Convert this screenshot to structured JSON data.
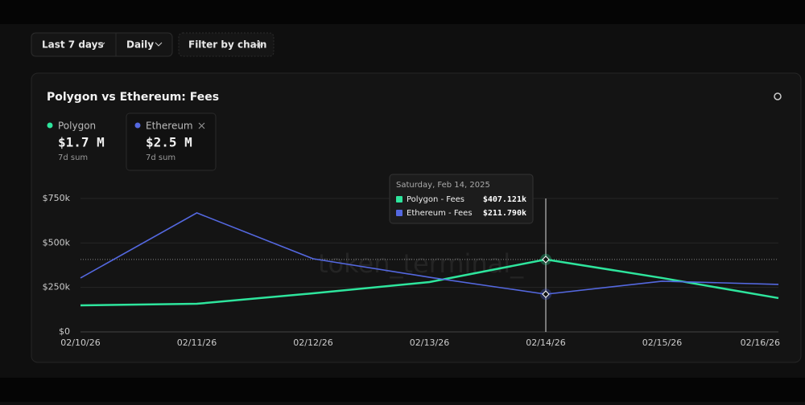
{
  "toolbar": {
    "range": "Last 7 days",
    "interval": "Daily",
    "filter": "Filter by chain"
  },
  "cards": [
    {
      "value": "$1.7 M",
      "note": "7d sum"
    },
    {
      "value": "$2.5 M",
      "note": "7d sum"
    }
  ],
  "watermark": "token_terminal_",
  "tooltip": {
    "title": "Saturday, Feb 14, 2025",
    "index": 4,
    "items": [
      {
        "label": "Polygon - Fees",
        "value_label": "$407.121k"
      },
      {
        "label": "Ethereum - Fees",
        "value_label": "$211.790k"
      }
    ]
  },
  "chart_data": {
    "type": "line",
    "title": "Polygon vs Ethereum: Fees",
    "categories": [
      "02/10/26",
      "02/11/26",
      "02/12/26",
      "02/13/26",
      "02/14/26",
      "02/15/26",
      "02/16/26"
    ],
    "series": [
      {
        "name": "Polygon",
        "color": "#2ee59d",
        "values": [
          149000,
          158000,
          217000,
          280000,
          407121,
          303000,
          190000
        ]
      },
      {
        "name": "Ethereum",
        "color": "#5468e0",
        "values": [
          303000,
          669000,
          411000,
          307000,
          211790,
          285000,
          267000
        ]
      }
    ],
    "ylim": [
      0,
      750000
    ],
    "yticks": [
      {
        "value": 0,
        "label": "$0"
      },
      {
        "value": 250000,
        "label": "$250k"
      },
      {
        "value": 500000,
        "label": "$500k"
      },
      {
        "value": 750000,
        "label": "$750k"
      }
    ],
    "grid": true
  }
}
